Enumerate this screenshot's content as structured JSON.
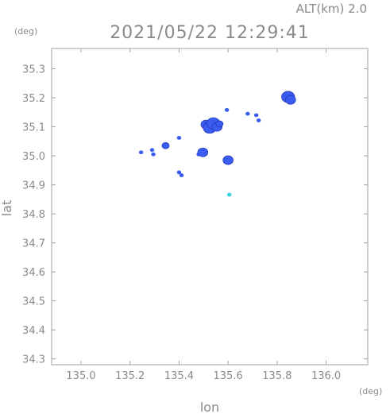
{
  "header": {
    "altitude": "ALT(km) 2.0",
    "datetime": "2021/05/22 12:29:41"
  },
  "chart_data": {
    "type": "scatter",
    "title": "2021/05/22 12:29:41",
    "xlabel": "lon",
    "ylabel": "lat",
    "x_unit": "(deg)",
    "y_unit": "(deg)",
    "xlim": [
      134.88,
      136.17
    ],
    "ylim": [
      34.28,
      35.37
    ],
    "x_ticks": [
      135.0,
      135.2,
      135.4,
      135.6,
      135.8,
      136.0
    ],
    "x_tick_labels": [
      "135.0",
      "135.2",
      "135.4",
      "135.6",
      "135.8",
      "136.0"
    ],
    "y_ticks": [
      34.3,
      34.4,
      34.5,
      34.6,
      34.7,
      34.8,
      34.9,
      35.0,
      35.1,
      35.2,
      35.3
    ],
    "y_tick_labels": [
      "34.3",
      "34.4",
      "34.5",
      "34.6",
      "34.7",
      "34.8",
      "34.9",
      "35.0",
      "35.1",
      "35.2",
      "35.3"
    ],
    "grid": false,
    "colors": {
      "echo": "#3a5cf0",
      "echo_weak": "#3ad0e0",
      "axis": "#a0a0a0"
    },
    "points": [
      {
        "lon": 135.245,
        "lat": 35.012,
        "size": 1,
        "level": "strong"
      },
      {
        "lon": 135.29,
        "lat": 35.02,
        "size": 1,
        "level": "strong"
      },
      {
        "lon": 135.295,
        "lat": 35.005,
        "size": 1,
        "level": "strong"
      },
      {
        "lon": 135.345,
        "lat": 35.035,
        "size": 2,
        "level": "strong"
      },
      {
        "lon": 135.4,
        "lat": 35.062,
        "size": 1,
        "level": "strong"
      },
      {
        "lon": 135.4,
        "lat": 34.943,
        "size": 1,
        "level": "strong"
      },
      {
        "lon": 135.41,
        "lat": 34.933,
        "size": 1,
        "level": "strong"
      },
      {
        "lon": 135.48,
        "lat": 35.005,
        "size": 1,
        "level": "strong"
      },
      {
        "lon": 135.497,
        "lat": 35.012,
        "size": 3,
        "level": "strong"
      },
      {
        "lon": 135.51,
        "lat": 35.108,
        "size": 3,
        "level": "strong"
      },
      {
        "lon": 135.525,
        "lat": 35.097,
        "size": 4,
        "level": "strong"
      },
      {
        "lon": 135.54,
        "lat": 35.112,
        "size": 4,
        "level": "strong"
      },
      {
        "lon": 135.555,
        "lat": 35.1,
        "size": 3,
        "level": "strong"
      },
      {
        "lon": 135.565,
        "lat": 35.11,
        "size": 2,
        "level": "strong"
      },
      {
        "lon": 135.595,
        "lat": 35.158,
        "size": 1,
        "level": "strong"
      },
      {
        "lon": 135.6,
        "lat": 34.985,
        "size": 3,
        "level": "strong"
      },
      {
        "lon": 135.605,
        "lat": 34.866,
        "size": 1,
        "level": "weak"
      },
      {
        "lon": 135.68,
        "lat": 35.145,
        "size": 1,
        "level": "strong"
      },
      {
        "lon": 135.715,
        "lat": 35.14,
        "size": 1,
        "level": "strong"
      },
      {
        "lon": 135.725,
        "lat": 35.122,
        "size": 1,
        "level": "strong"
      },
      {
        "lon": 135.845,
        "lat": 35.203,
        "size": 4,
        "level": "strong"
      },
      {
        "lon": 135.855,
        "lat": 35.193,
        "size": 3,
        "level": "strong"
      }
    ]
  }
}
